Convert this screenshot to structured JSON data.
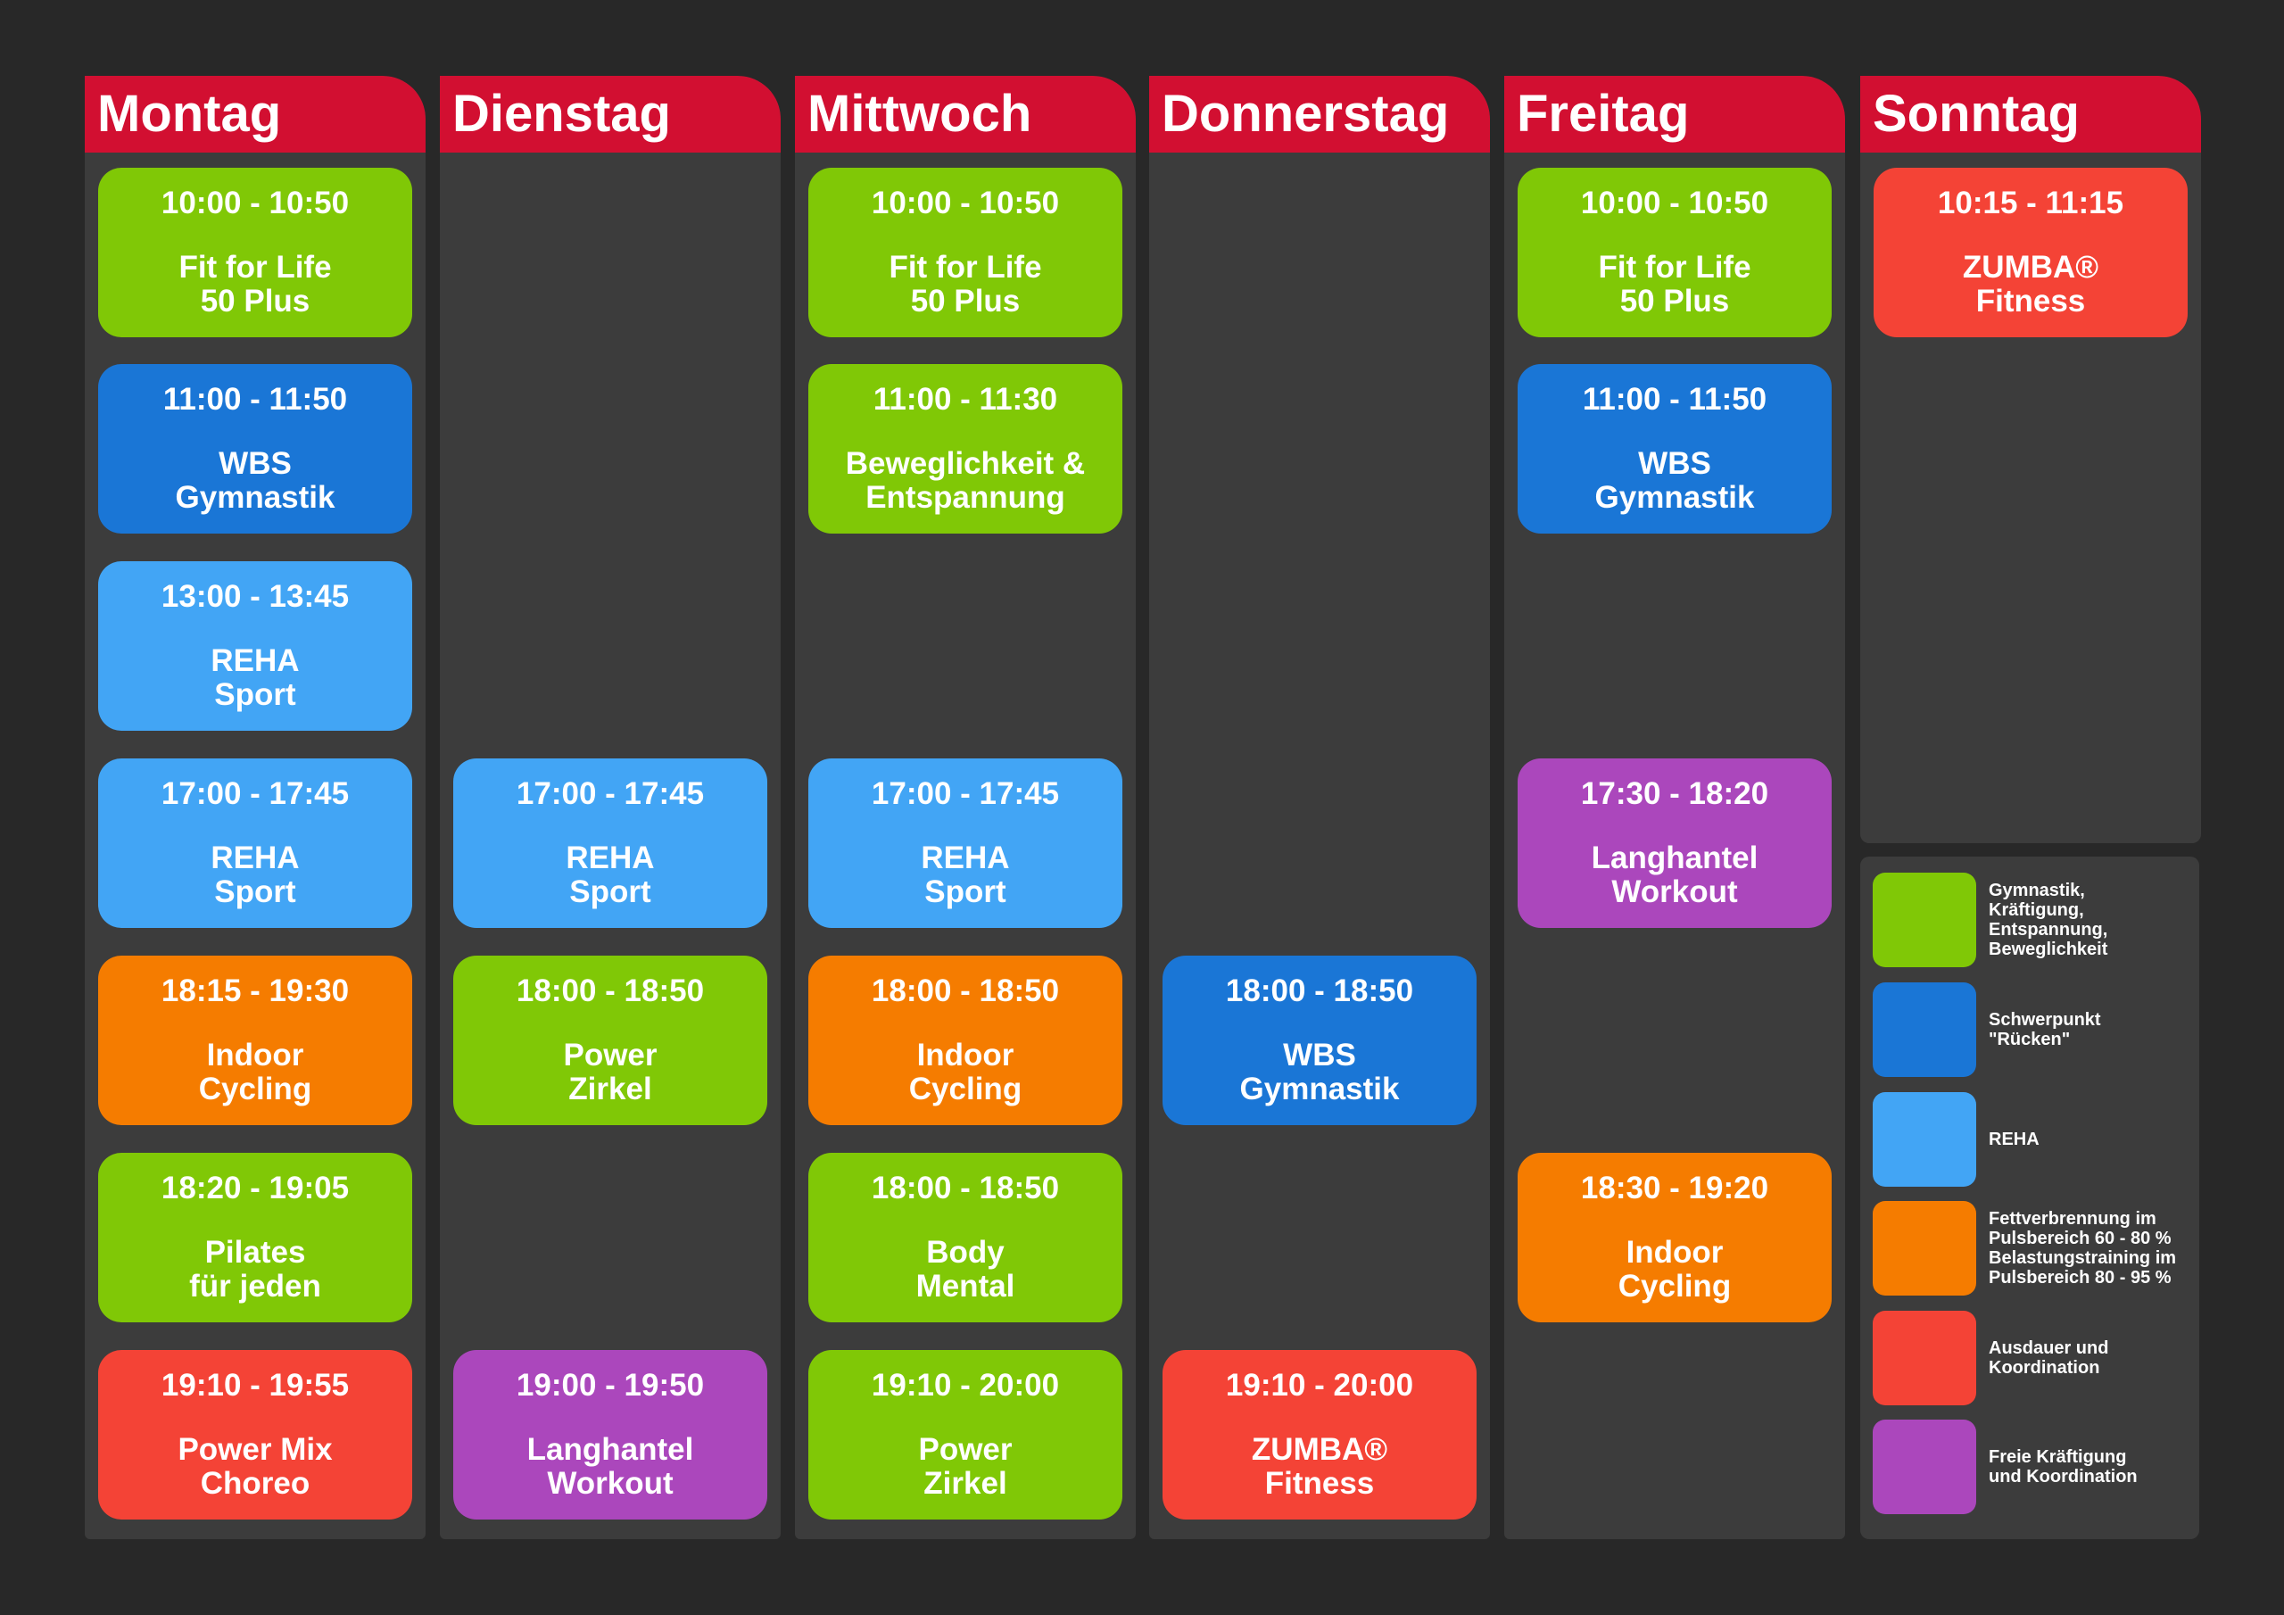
{
  "colors": {
    "page_background": "#282828",
    "column_background": "#3c3c3c",
    "header_red": "#d20f31",
    "category_green": "#80c806",
    "category_dark_blue": "#1a76d6",
    "category_light_blue": "#42a5f5",
    "category_orange": "#f57c00",
    "category_red": "#f44336",
    "category_purple": "#ab47bc"
  },
  "days": [
    {
      "name": "Montag",
      "classes": [
        {
          "row": 0,
          "time": "10:00 - 10:50",
          "name": "Fit for Life\n50 Plus",
          "category": "green"
        },
        {
          "row": 1,
          "time": "11:00 - 11:50",
          "name": "WBS\nGymnastik",
          "category": "dark_blue"
        },
        {
          "row": 2,
          "time": "13:00 - 13:45",
          "name": "REHA\nSport",
          "category": "light_blue"
        },
        {
          "row": 3,
          "time": "17:00 - 17:45",
          "name": "REHA\nSport",
          "category": "light_blue"
        },
        {
          "row": 4,
          "time": "18:15 - 19:30",
          "name": "Indoor\nCycling",
          "category": "orange"
        },
        {
          "row": 5,
          "time": "18:20 - 19:05",
          "name": "Pilates\nfür jeden",
          "category": "green"
        },
        {
          "row": 6,
          "time": "19:10 - 19:55",
          "name": "Power Mix\nChoreo",
          "category": "red"
        }
      ]
    },
    {
      "name": "Dienstag",
      "classes": [
        {
          "row": 3,
          "time": "17:00 - 17:45",
          "name": "REHA\nSport",
          "category": "light_blue"
        },
        {
          "row": 4,
          "time": "18:00 - 18:50",
          "name": "Power\nZirkel",
          "category": "green"
        },
        {
          "row": 6,
          "time": "19:00 - 19:50",
          "name": "Langhantel\nWorkout",
          "category": "purple"
        }
      ]
    },
    {
      "name": "Mittwoch",
      "classes": [
        {
          "row": 0,
          "time": "10:00 - 10:50",
          "name": "Fit for Life\n50 Plus",
          "category": "green"
        },
        {
          "row": 1,
          "time": "11:00 - 11:30",
          "name": "Beweglichkeit &\nEntspannung",
          "category": "green"
        },
        {
          "row": 3,
          "time": "17:00 - 17:45",
          "name": "REHA\nSport",
          "category": "light_blue"
        },
        {
          "row": 4,
          "time": "18:00 - 18:50",
          "name": "Indoor\nCycling",
          "category": "orange"
        },
        {
          "row": 5,
          "time": "18:00 - 18:50",
          "name": "Body\nMental",
          "category": "green"
        },
        {
          "row": 6,
          "time": "19:10 - 20:00",
          "name": "Power\nZirkel",
          "category": "green"
        }
      ]
    },
    {
      "name": "Donnerstag",
      "classes": [
        {
          "row": 4,
          "time": "18:00 - 18:50",
          "name": "WBS\nGymnastik",
          "category": "dark_blue"
        },
        {
          "row": 6,
          "time": "19:10 - 20:00",
          "name": "ZUMBA®\nFitness",
          "category": "red"
        }
      ]
    },
    {
      "name": "Freitag",
      "classes": [
        {
          "row": 0,
          "time": "10:00 - 10:50",
          "name": "Fit for Life\n50 Plus",
          "category": "green"
        },
        {
          "row": 1,
          "time": "11:00 - 11:50",
          "name": "WBS\nGymnastik",
          "category": "dark_blue"
        },
        {
          "row": 3,
          "time": "17:30 - 18:20",
          "name": "Langhantel\nWorkout",
          "category": "purple"
        },
        {
          "row": 5,
          "time": "18:30 - 19:20",
          "name": "Indoor\nCycling",
          "category": "orange"
        }
      ]
    },
    {
      "name": "Sonntag",
      "classes": [
        {
          "row": 0,
          "time": "10:15 - 11:15",
          "name": "ZUMBA®\nFitness",
          "category": "red"
        }
      ]
    }
  ],
  "legend": [
    {
      "category": "green",
      "label": "Gymnastik,\nKräftigung,\nEntspannung,\nBeweglichkeit"
    },
    {
      "category": "dark_blue",
      "label": "Schwerpunkt\n\"Rücken\""
    },
    {
      "category": "light_blue",
      "label": "REHA"
    },
    {
      "category": "orange",
      "label": "Fettverbrennung im\nPulsbereich 60 - 80 %\nBelastungstraining im\nPulsbereich 80 - 95 %"
    },
    {
      "category": "red",
      "label": "Ausdauer und\nKoordination"
    },
    {
      "category": "purple",
      "label": "Freie Kräftigung\nund Koordination"
    }
  ]
}
